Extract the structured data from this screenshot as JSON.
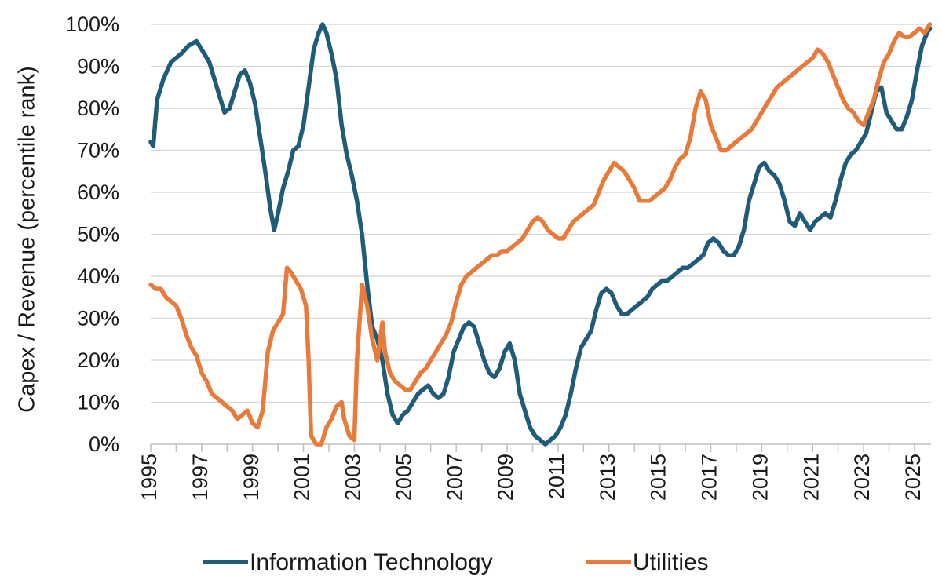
{
  "chart_data": {
    "type": "line",
    "title": "",
    "xlabel": "",
    "ylabel": "Capex / Revenue (percentile rank)",
    "xlim": [
      1995,
      2025.65
    ],
    "ylim": [
      0,
      100
    ],
    "y_ticks": [
      "0%",
      "10%",
      "20%",
      "30%",
      "40%",
      "50%",
      "60%",
      "70%",
      "80%",
      "90%",
      "100%"
    ],
    "x_ticks": [
      "1995",
      "1997",
      "1999",
      "2001",
      "2003",
      "2005",
      "2007",
      "2009",
      "2011",
      "2013",
      "2015",
      "2017",
      "2019",
      "2021",
      "2023",
      "2025"
    ],
    "grid": true,
    "legend_position": "bottom",
    "series": [
      {
        "name": "Information Technology",
        "color": "#1f5c7a",
        "points": [
          [
            1995.0,
            72
          ],
          [
            1995.1,
            71
          ],
          [
            1995.25,
            82
          ],
          [
            1995.5,
            87
          ],
          [
            1995.8,
            91
          ],
          [
            1996.2,
            93
          ],
          [
            1996.5,
            95
          ],
          [
            1996.8,
            96
          ],
          [
            1997.0,
            94
          ],
          [
            1997.3,
            91
          ],
          [
            1997.6,
            85
          ],
          [
            1997.9,
            79
          ],
          [
            1998.1,
            80
          ],
          [
            1998.3,
            84
          ],
          [
            1998.5,
            88
          ],
          [
            1998.7,
            89
          ],
          [
            1998.9,
            86
          ],
          [
            1999.1,
            81
          ],
          [
            1999.3,
            73
          ],
          [
            1999.5,
            65
          ],
          [
            1999.7,
            56
          ],
          [
            1999.85,
            51
          ],
          [
            2000.0,
            55
          ],
          [
            2000.2,
            61
          ],
          [
            2000.4,
            65
          ],
          [
            2000.6,
            70
          ],
          [
            2000.8,
            71
          ],
          [
            2001.0,
            76
          ],
          [
            2001.2,
            85
          ],
          [
            2001.4,
            94
          ],
          [
            2001.6,
            98
          ],
          [
            2001.75,
            100
          ],
          [
            2001.9,
            98
          ],
          [
            2002.1,
            93
          ],
          [
            2002.3,
            87
          ],
          [
            2002.5,
            76
          ],
          [
            2002.7,
            69
          ],
          [
            2002.9,
            64
          ],
          [
            2003.1,
            58
          ],
          [
            2003.3,
            50
          ],
          [
            2003.5,
            38
          ],
          [
            2003.7,
            28
          ],
          [
            2003.9,
            25
          ],
          [
            2004.1,
            20
          ],
          [
            2004.3,
            12
          ],
          [
            2004.5,
            7
          ],
          [
            2004.7,
            5
          ],
          [
            2004.9,
            7
          ],
          [
            2005.1,
            8
          ],
          [
            2005.3,
            10
          ],
          [
            2005.5,
            12
          ],
          [
            2005.7,
            13
          ],
          [
            2005.9,
            14
          ],
          [
            2006.1,
            12
          ],
          [
            2006.3,
            11
          ],
          [
            2006.5,
            12
          ],
          [
            2006.7,
            16
          ],
          [
            2006.9,
            22
          ],
          [
            2007.1,
            25
          ],
          [
            2007.3,
            28
          ],
          [
            2007.5,
            29
          ],
          [
            2007.7,
            28
          ],
          [
            2007.9,
            24
          ],
          [
            2008.1,
            20
          ],
          [
            2008.3,
            17
          ],
          [
            2008.5,
            16
          ],
          [
            2008.7,
            18
          ],
          [
            2008.9,
            22
          ],
          [
            2009.1,
            24
          ],
          [
            2009.3,
            20
          ],
          [
            2009.5,
            12
          ],
          [
            2009.7,
            8
          ],
          [
            2009.9,
            4
          ],
          [
            2010.1,
            2
          ],
          [
            2010.3,
            1
          ],
          [
            2010.5,
            0
          ],
          [
            2010.7,
            1
          ],
          [
            2010.9,
            2
          ],
          [
            2011.1,
            4
          ],
          [
            2011.3,
            7
          ],
          [
            2011.5,
            12
          ],
          [
            2011.7,
            18
          ],
          [
            2011.9,
            23
          ],
          [
            2012.1,
            25
          ],
          [
            2012.3,
            27
          ],
          [
            2012.5,
            32
          ],
          [
            2012.7,
            36
          ],
          [
            2012.9,
            37
          ],
          [
            2013.1,
            36
          ],
          [
            2013.3,
            33
          ],
          [
            2013.5,
            31
          ],
          [
            2013.7,
            31
          ],
          [
            2013.9,
            32
          ],
          [
            2014.1,
            33
          ],
          [
            2014.3,
            34
          ],
          [
            2014.5,
            35
          ],
          [
            2014.7,
            37
          ],
          [
            2014.9,
            38
          ],
          [
            2015.1,
            39
          ],
          [
            2015.3,
            39
          ],
          [
            2015.5,
            40
          ],
          [
            2015.7,
            41
          ],
          [
            2015.9,
            42
          ],
          [
            2016.1,
            42
          ],
          [
            2016.3,
            43
          ],
          [
            2016.5,
            44
          ],
          [
            2016.7,
            45
          ],
          [
            2016.9,
            48
          ],
          [
            2017.1,
            49
          ],
          [
            2017.3,
            48
          ],
          [
            2017.5,
            46
          ],
          [
            2017.7,
            45
          ],
          [
            2017.9,
            45
          ],
          [
            2018.1,
            47
          ],
          [
            2018.3,
            51
          ],
          [
            2018.5,
            58
          ],
          [
            2018.7,
            62
          ],
          [
            2018.9,
            66
          ],
          [
            2019.1,
            67
          ],
          [
            2019.3,
            65
          ],
          [
            2019.5,
            64
          ],
          [
            2019.7,
            62
          ],
          [
            2019.9,
            58
          ],
          [
            2020.1,
            53
          ],
          [
            2020.3,
            52
          ],
          [
            2020.5,
            55
          ],
          [
            2020.7,
            53
          ],
          [
            2020.9,
            51
          ],
          [
            2021.1,
            53
          ],
          [
            2021.3,
            54
          ],
          [
            2021.5,
            55
          ],
          [
            2021.7,
            54
          ],
          [
            2021.9,
            58
          ],
          [
            2022.1,
            63
          ],
          [
            2022.3,
            67
          ],
          [
            2022.5,
            69
          ],
          [
            2022.7,
            70
          ],
          [
            2022.9,
            72
          ],
          [
            2023.1,
            74
          ],
          [
            2023.3,
            79
          ],
          [
            2023.5,
            84
          ],
          [
            2023.7,
            85
          ],
          [
            2023.9,
            79
          ],
          [
            2024.1,
            77
          ],
          [
            2024.3,
            75
          ],
          [
            2024.5,
            75
          ],
          [
            2024.7,
            78
          ],
          [
            2024.9,
            82
          ],
          [
            2025.1,
            89
          ],
          [
            2025.3,
            95
          ],
          [
            2025.5,
            98
          ],
          [
            2025.6,
            99
          ]
        ]
      },
      {
        "name": "Utilities",
        "color": "#e87a3a",
        "points": [
          [
            1995.0,
            38
          ],
          [
            1995.2,
            37
          ],
          [
            1995.4,
            37
          ],
          [
            1995.6,
            35
          ],
          [
            1995.8,
            34
          ],
          [
            1996.0,
            33
          ],
          [
            1996.2,
            30
          ],
          [
            1996.4,
            26
          ],
          [
            1996.6,
            23
          ],
          [
            1996.8,
            21
          ],
          [
            1997.0,
            17
          ],
          [
            1997.2,
            15
          ],
          [
            1997.4,
            12
          ],
          [
            1997.6,
            11
          ],
          [
            1997.8,
            10
          ],
          [
            1998.0,
            9
          ],
          [
            1998.2,
            8
          ],
          [
            1998.4,
            6
          ],
          [
            1998.6,
            7
          ],
          [
            1998.8,
            8
          ],
          [
            1999.0,
            5
          ],
          [
            1999.2,
            4
          ],
          [
            1999.4,
            8
          ],
          [
            1999.6,
            22
          ],
          [
            1999.8,
            27
          ],
          [
            2000.0,
            29
          ],
          [
            2000.2,
            31
          ],
          [
            2000.35,
            42
          ],
          [
            2000.5,
            41
          ],
          [
            2000.7,
            39
          ],
          [
            2000.9,
            37
          ],
          [
            2001.1,
            33
          ],
          [
            2001.2,
            20
          ],
          [
            2001.3,
            2
          ],
          [
            2001.5,
            0
          ],
          [
            2001.7,
            0
          ],
          [
            2001.9,
            4
          ],
          [
            2002.1,
            6
          ],
          [
            2002.3,
            9
          ],
          [
            2002.5,
            10
          ],
          [
            2002.6,
            6
          ],
          [
            2002.8,
            2
          ],
          [
            2003.0,
            1
          ],
          [
            2003.1,
            20
          ],
          [
            2003.3,
            38
          ],
          [
            2003.5,
            33
          ],
          [
            2003.7,
            25
          ],
          [
            2003.9,
            20
          ],
          [
            2004.1,
            29
          ],
          [
            2004.2,
            22
          ],
          [
            2004.4,
            17
          ],
          [
            2004.6,
            15
          ],
          [
            2004.8,
            14
          ],
          [
            2005.0,
            13
          ],
          [
            2005.2,
            13
          ],
          [
            2005.4,
            15
          ],
          [
            2005.6,
            17
          ],
          [
            2005.8,
            18
          ],
          [
            2006.0,
            20
          ],
          [
            2006.2,
            22
          ],
          [
            2006.4,
            24
          ],
          [
            2006.6,
            26
          ],
          [
            2006.8,
            29
          ],
          [
            2007.0,
            34
          ],
          [
            2007.2,
            38
          ],
          [
            2007.4,
            40
          ],
          [
            2007.6,
            41
          ],
          [
            2007.8,
            42
          ],
          [
            2008.0,
            43
          ],
          [
            2008.2,
            44
          ],
          [
            2008.4,
            45
          ],
          [
            2008.6,
            45
          ],
          [
            2008.8,
            46
          ],
          [
            2009.0,
            46
          ],
          [
            2009.2,
            47
          ],
          [
            2009.4,
            48
          ],
          [
            2009.6,
            49
          ],
          [
            2009.8,
            51
          ],
          [
            2010.0,
            53
          ],
          [
            2010.2,
            54
          ],
          [
            2010.4,
            53
          ],
          [
            2010.6,
            51
          ],
          [
            2010.8,
            50
          ],
          [
            2011.0,
            49
          ],
          [
            2011.2,
            49
          ],
          [
            2011.4,
            51
          ],
          [
            2011.6,
            53
          ],
          [
            2011.8,
            54
          ],
          [
            2012.0,
            55
          ],
          [
            2012.2,
            56
          ],
          [
            2012.4,
            57
          ],
          [
            2012.6,
            60
          ],
          [
            2012.8,
            63
          ],
          [
            2013.0,
            65
          ],
          [
            2013.2,
            67
          ],
          [
            2013.4,
            66
          ],
          [
            2013.6,
            65
          ],
          [
            2013.8,
            63
          ],
          [
            2014.0,
            61
          ],
          [
            2014.2,
            58
          ],
          [
            2014.4,
            58
          ],
          [
            2014.6,
            58
          ],
          [
            2014.8,
            59
          ],
          [
            2015.0,
            60
          ],
          [
            2015.2,
            61
          ],
          [
            2015.4,
            63
          ],
          [
            2015.6,
            66
          ],
          [
            2015.8,
            68
          ],
          [
            2016.0,
            69
          ],
          [
            2016.2,
            73
          ],
          [
            2016.4,
            80
          ],
          [
            2016.6,
            84
          ],
          [
            2016.8,
            82
          ],
          [
            2017.0,
            76
          ],
          [
            2017.2,
            73
          ],
          [
            2017.4,
            70
          ],
          [
            2017.6,
            70
          ],
          [
            2017.8,
            71
          ],
          [
            2018.0,
            72
          ],
          [
            2018.2,
            73
          ],
          [
            2018.4,
            74
          ],
          [
            2018.6,
            75
          ],
          [
            2018.8,
            77
          ],
          [
            2019.0,
            79
          ],
          [
            2019.2,
            81
          ],
          [
            2019.4,
            83
          ],
          [
            2019.6,
            85
          ],
          [
            2019.8,
            86
          ],
          [
            2020.0,
            87
          ],
          [
            2020.2,
            88
          ],
          [
            2020.4,
            89
          ],
          [
            2020.6,
            90
          ],
          [
            2020.8,
            91
          ],
          [
            2021.0,
            92
          ],
          [
            2021.2,
            94
          ],
          [
            2021.4,
            93
          ],
          [
            2021.6,
            91
          ],
          [
            2021.8,
            88
          ],
          [
            2022.0,
            85
          ],
          [
            2022.2,
            82
          ],
          [
            2022.4,
            80
          ],
          [
            2022.6,
            79
          ],
          [
            2022.8,
            77
          ],
          [
            2023.0,
            76
          ],
          [
            2023.2,
            79
          ],
          [
            2023.4,
            82
          ],
          [
            2023.6,
            87
          ],
          [
            2023.8,
            91
          ],
          [
            2024.0,
            93
          ],
          [
            2024.2,
            96
          ],
          [
            2024.4,
            98
          ],
          [
            2024.6,
            97
          ],
          [
            2024.8,
            97
          ],
          [
            2025.0,
            98
          ],
          [
            2025.2,
            99
          ],
          [
            2025.4,
            98
          ],
          [
            2025.6,
            100
          ]
        ]
      }
    ]
  }
}
